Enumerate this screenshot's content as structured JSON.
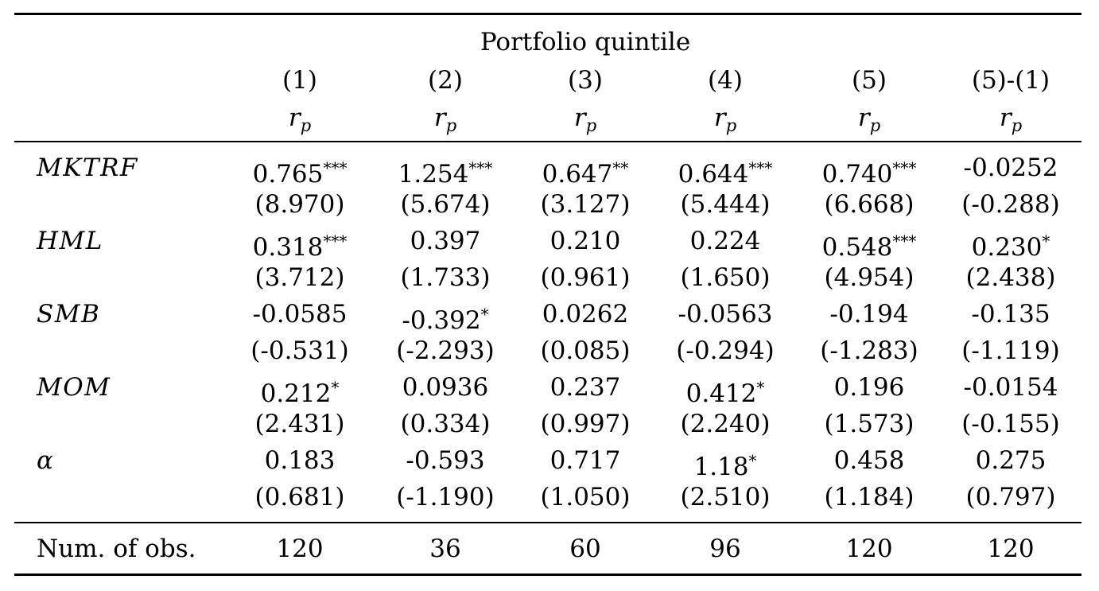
{
  "table": {
    "super_header": "Portfolio quintile",
    "columns": [
      {
        "number": "(1)",
        "var_base": "r",
        "var_sub": "p"
      },
      {
        "number": "(2)",
        "var_base": "r",
        "var_sub": "p"
      },
      {
        "number": "(3)",
        "var_base": "r",
        "var_sub": "p"
      },
      {
        "number": "(4)",
        "var_base": "r",
        "var_sub": "p"
      },
      {
        "number": "(5)",
        "var_base": "r",
        "var_sub": "p"
      },
      {
        "number": "(5)-(1)",
        "var_base": "r",
        "var_sub": "p"
      }
    ],
    "rows": [
      {
        "label": "MKTRF",
        "coef": [
          {
            "value": "0.765",
            "stars": "***"
          },
          {
            "value": "1.254",
            "stars": "***"
          },
          {
            "value": "0.647",
            "stars": "**"
          },
          {
            "value": "0.644",
            "stars": "***"
          },
          {
            "value": "0.740",
            "stars": "***"
          },
          {
            "value": "-0.0252",
            "stars": ""
          }
        ],
        "tstat": [
          "(8.970)",
          "(5.674)",
          "(3.127)",
          "(5.444)",
          "(6.668)",
          "(-0.288)"
        ]
      },
      {
        "label": "HML",
        "coef": [
          {
            "value": "0.318",
            "stars": "***"
          },
          {
            "value": "0.397",
            "stars": ""
          },
          {
            "value": "0.210",
            "stars": ""
          },
          {
            "value": "0.224",
            "stars": ""
          },
          {
            "value": "0.548",
            "stars": "***"
          },
          {
            "value": "0.230",
            "stars": "*"
          }
        ],
        "tstat": [
          "(3.712)",
          "(1.733)",
          "(0.961)",
          "(1.650)",
          "(4.954)",
          "(2.438)"
        ]
      },
      {
        "label": "SMB",
        "coef": [
          {
            "value": "-0.0585",
            "stars": ""
          },
          {
            "value": "-0.392",
            "stars": "*"
          },
          {
            "value": "0.0262",
            "stars": ""
          },
          {
            "value": "-0.0563",
            "stars": ""
          },
          {
            "value": "-0.194",
            "stars": ""
          },
          {
            "value": "-0.135",
            "stars": ""
          }
        ],
        "tstat": [
          "(-0.531)",
          "(-2.293)",
          "(0.085)",
          "(-0.294)",
          "(-1.283)",
          "(-1.119)"
        ]
      },
      {
        "label": "MOM",
        "coef": [
          {
            "value": "0.212",
            "stars": "*"
          },
          {
            "value": "0.0936",
            "stars": ""
          },
          {
            "value": "0.237",
            "stars": ""
          },
          {
            "value": "0.412",
            "stars": "*"
          },
          {
            "value": "0.196",
            "stars": ""
          },
          {
            "value": "-0.0154",
            "stars": ""
          }
        ],
        "tstat": [
          "(2.431)",
          "(0.334)",
          "(0.997)",
          "(2.240)",
          "(1.573)",
          "(-0.155)"
        ]
      },
      {
        "label": "α",
        "coef": [
          {
            "value": "0.183",
            "stars": ""
          },
          {
            "value": "-0.593",
            "stars": ""
          },
          {
            "value": "0.717",
            "stars": ""
          },
          {
            "value": "1.18",
            "stars": "*"
          },
          {
            "value": "0.458",
            "stars": ""
          },
          {
            "value": "0.275",
            "stars": ""
          }
        ],
        "tstat": [
          "(0.681)",
          "(-1.190)",
          "(1.050)",
          "(2.510)",
          "(1.184)",
          "(0.797)"
        ]
      }
    ],
    "footer": {
      "label": "Num. of obs.",
      "values": [
        "120",
        "36",
        "60",
        "96",
        "120",
        "120"
      ]
    }
  }
}
